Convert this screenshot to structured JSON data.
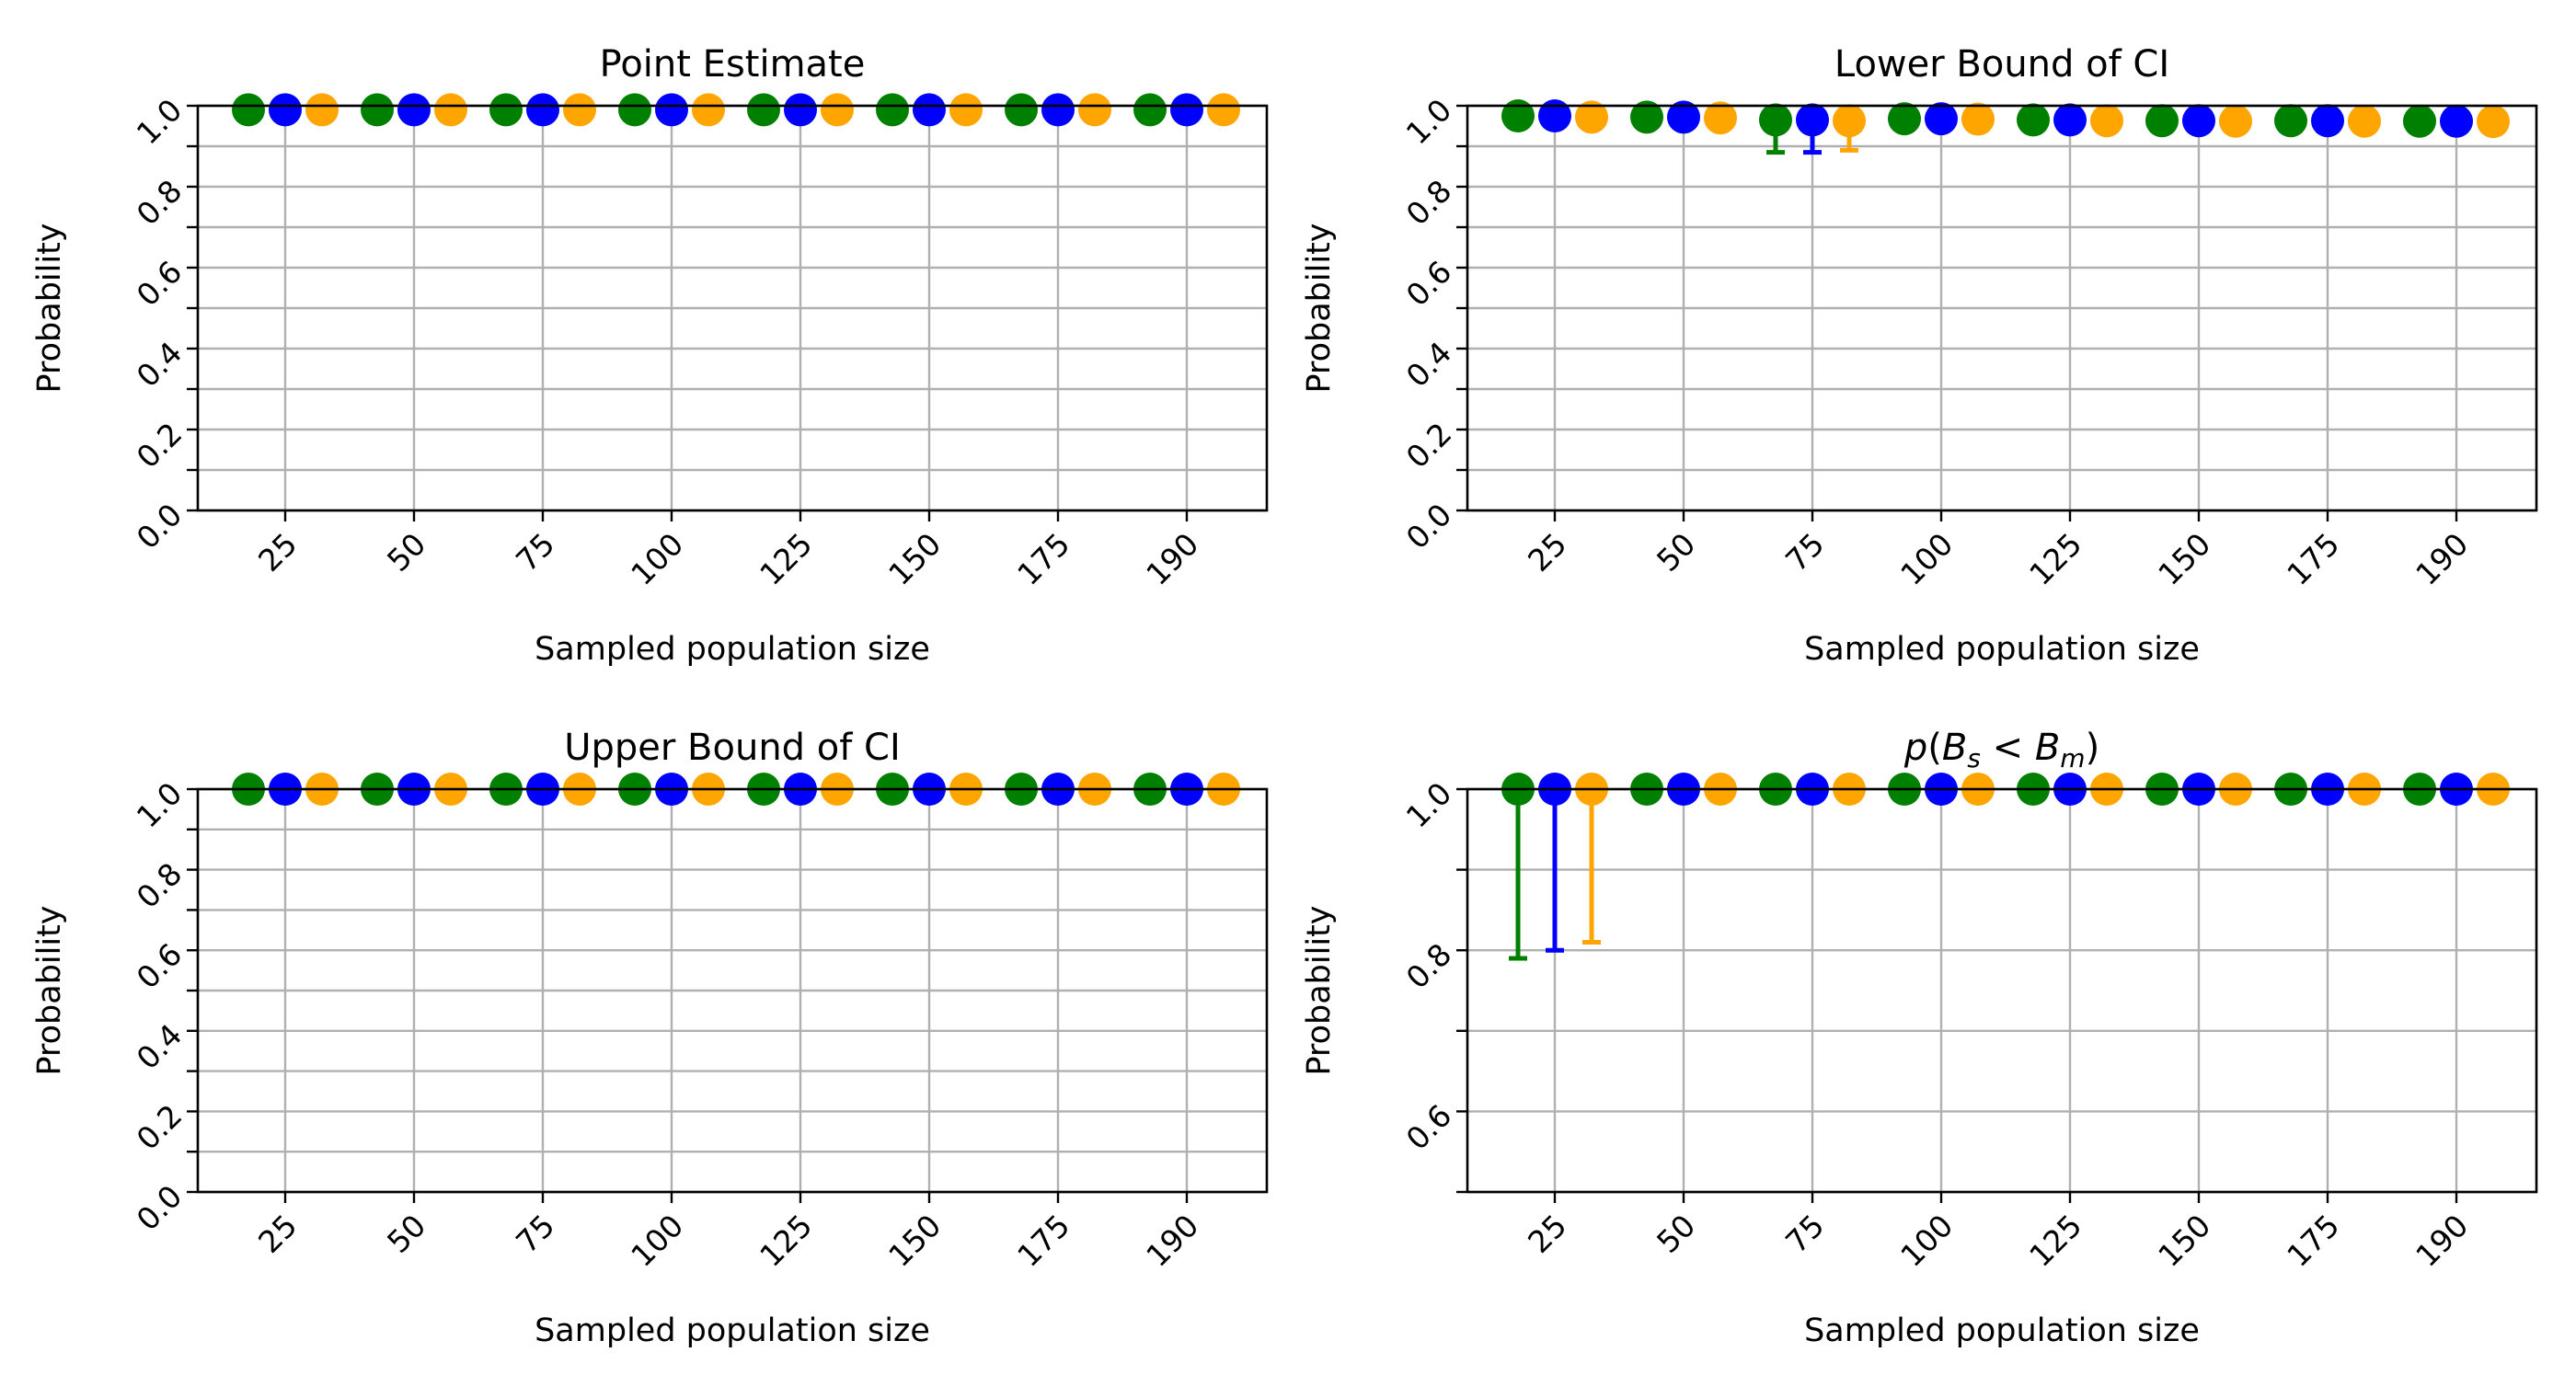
{
  "chart_data": [
    {
      "type": "scatter",
      "title": "Point Estimate",
      "xlabel": "Sampled population size",
      "ylabel": "Probability",
      "categories": [
        "25",
        "50",
        "75",
        "100",
        "125",
        "150",
        "175",
        "190"
      ],
      "ylim": [
        0.0,
        1.0
      ],
      "yticks": [
        "0.0",
        "0.2",
        "0.4",
        "0.6",
        "0.8",
        "1.0"
      ],
      "grid": true,
      "series": [
        {
          "color": "#008000",
          "values": [
            0.99,
            0.99,
            0.99,
            0.99,
            0.99,
            0.99,
            0.99,
            0.99
          ]
        },
        {
          "color": "#0000ff",
          "values": [
            0.99,
            0.99,
            0.99,
            0.99,
            0.99,
            0.99,
            0.99,
            0.99
          ]
        },
        {
          "color": "#ffa500",
          "values": [
            0.99,
            0.99,
            0.99,
            0.99,
            0.99,
            0.99,
            0.99,
            0.99
          ]
        }
      ]
    },
    {
      "type": "scatter",
      "title": "Lower Bound of CI",
      "xlabel": "Sampled population size",
      "ylabel": "Probability",
      "categories": [
        "25",
        "50",
        "75",
        "100",
        "125",
        "150",
        "175",
        "190"
      ],
      "ylim": [
        0.0,
        1.0
      ],
      "yticks": [
        "0.0",
        "0.2",
        "0.4",
        "0.6",
        "0.8",
        "1.0"
      ],
      "grid": true,
      "series": [
        {
          "color": "#008000",
          "values": [
            0.975,
            0.972,
            0.965,
            0.968,
            0.965,
            0.963,
            0.963,
            0.962
          ],
          "err_low": [
            null,
            null,
            0.885,
            null,
            null,
            null,
            null,
            null
          ]
        },
        {
          "color": "#0000ff",
          "values": [
            0.975,
            0.972,
            0.965,
            0.968,
            0.965,
            0.963,
            0.963,
            0.962
          ],
          "err_low": [
            null,
            null,
            0.885,
            null,
            null,
            null,
            null,
            null
          ]
        },
        {
          "color": "#ffa500",
          "values": [
            0.972,
            0.97,
            0.963,
            0.967,
            0.963,
            0.962,
            0.962,
            0.961
          ],
          "err_low": [
            null,
            null,
            0.89,
            null,
            null,
            null,
            null,
            null
          ]
        }
      ]
    },
    {
      "type": "scatter",
      "title": "Upper Bound of CI",
      "xlabel": "Sampled population size",
      "ylabel": "Probability",
      "categories": [
        "25",
        "50",
        "75",
        "100",
        "125",
        "150",
        "175",
        "190"
      ],
      "ylim": [
        0.0,
        1.0
      ],
      "yticks": [
        "0.0",
        "0.2",
        "0.4",
        "0.6",
        "0.8",
        "1.0"
      ],
      "grid": true,
      "series": [
        {
          "color": "#008000",
          "values": [
            1.0,
            1.0,
            1.0,
            1.0,
            1.0,
            1.0,
            1.0,
            1.0
          ]
        },
        {
          "color": "#0000ff",
          "values": [
            1.0,
            1.0,
            1.0,
            1.0,
            1.0,
            1.0,
            1.0,
            1.0
          ]
        },
        {
          "color": "#ffa500",
          "values": [
            1.0,
            1.0,
            1.0,
            1.0,
            1.0,
            1.0,
            1.0,
            1.0
          ]
        }
      ]
    },
    {
      "type": "scatter",
      "title": "p(B_s < B_m)",
      "title_math": {
        "p": "p(",
        "b1": "B",
        "s1": "s",
        "op": " < ",
        "b2": "B",
        "s2": "m",
        "close": ")"
      },
      "xlabel": "Sampled population size",
      "ylabel": "Probability",
      "categories": [
        "25",
        "50",
        "75",
        "100",
        "125",
        "150",
        "175",
        "190"
      ],
      "ylim": [
        0.5,
        1.0
      ],
      "yticks": [
        "0.6",
        "0.8",
        "1.0"
      ],
      "grid": true,
      "series": [
        {
          "color": "#008000",
          "values": [
            1.0,
            1.0,
            1.0,
            1.0,
            1.0,
            1.0,
            1.0,
            1.0
          ],
          "err_low": [
            0.79,
            null,
            null,
            null,
            null,
            null,
            null,
            null
          ]
        },
        {
          "color": "#0000ff",
          "values": [
            1.0,
            1.0,
            1.0,
            1.0,
            1.0,
            1.0,
            1.0,
            1.0
          ],
          "err_low": [
            0.8,
            null,
            null,
            null,
            null,
            null,
            null,
            null
          ]
        },
        {
          "color": "#ffa500",
          "values": [
            1.0,
            1.0,
            1.0,
            1.0,
            1.0,
            1.0,
            1.0,
            1.0
          ],
          "err_low": [
            0.81,
            null,
            null,
            null,
            null,
            null,
            null,
            null
          ]
        }
      ]
    }
  ]
}
